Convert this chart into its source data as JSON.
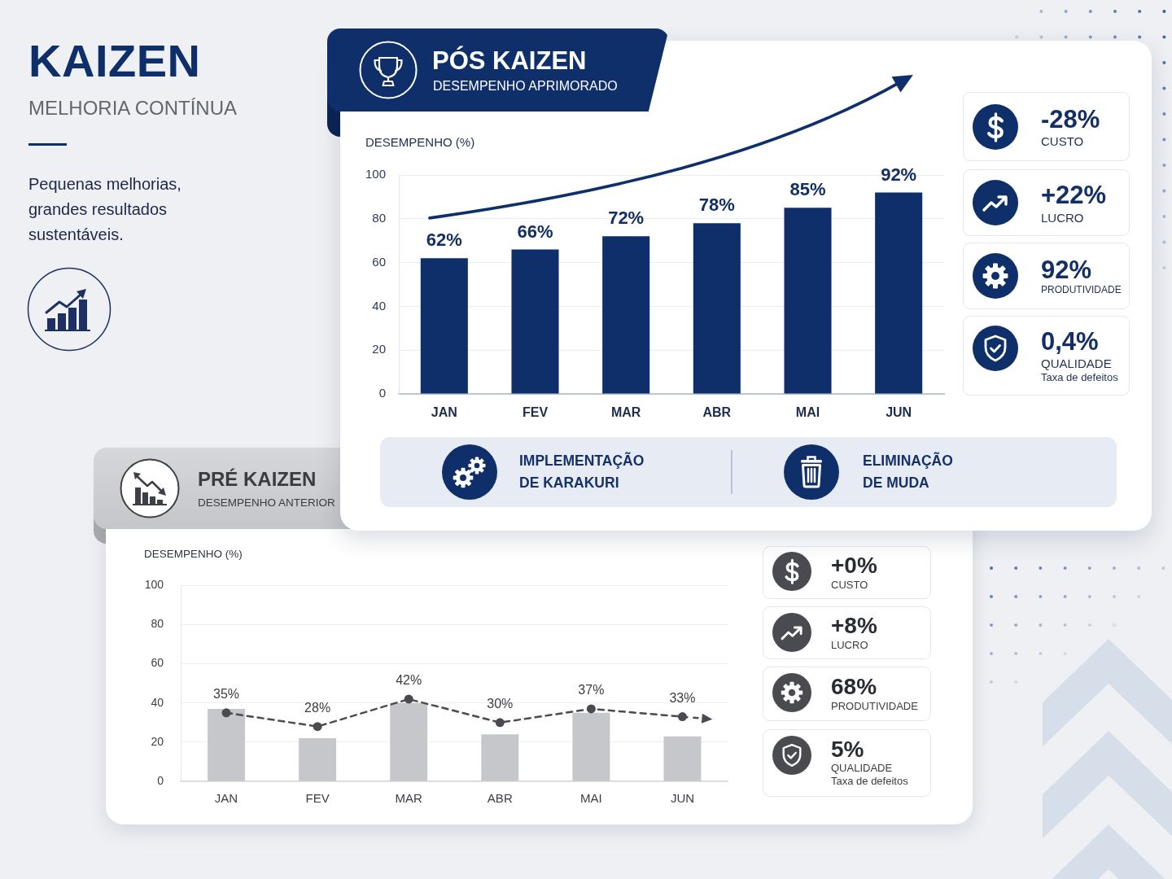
{
  "chart_data": [
    {
      "type": "other",
      "title": "KAIZEN",
      "subtitle": "MELHORIA CONTÍNUA",
      "annotations": [
        "Pequenas melhorias, grandes resultados sustentáveis."
      ]
    },
    {
      "type": "bar",
      "title": "PÓS KAIZEN",
      "subtitle": "DESEMPENHO APRIMORADO",
      "ylabel": "DESEMPENHO (%)",
      "categories": [
        "JAN",
        "FEV",
        "MAR",
        "ABR",
        "MAI",
        "JUN"
      ],
      "values": [
        62,
        66,
        72,
        78,
        85,
        92
      ],
      "value_labels": [
        "62%",
        "66%",
        "72%",
        "78%",
        "85%",
        "92%"
      ],
      "color": "#0f2f6b",
      "ylim": [
        0,
        100
      ],
      "yticks": [
        0,
        20,
        40,
        60,
        80,
        100
      ],
      "grid": "y"
    },
    {
      "type": "other",
      "title": "-28%",
      "subtitle": "CUSTO"
    },
    {
      "type": "other",
      "title": "+22%",
      "subtitle": "LUCRO"
    },
    {
      "type": "other",
      "title": "92%",
      "subtitle": "PRODUTIVIDADE"
    },
    {
      "type": "other",
      "title": "0,4%",
      "subtitle": "QUALIDADE",
      "annotations": [
        "Taxa de defeitos"
      ]
    },
    {
      "type": "other",
      "annotations": [
        "IMPLEMENTAÇÃO DE KARAKURI",
        "ELIMINAÇÃO DE MUDA"
      ]
    },
    {
      "type": "bar",
      "title": "PRÉ KAIZEN",
      "subtitle": "DESEMPENHO ANTERIOR",
      "ylabel": "DESEMPENHO (%)",
      "categories": [
        "JAN",
        "FEV",
        "MAR",
        "ABR",
        "MAI",
        "JUN"
      ],
      "series": [
        {
          "type": "bar",
          "color": "#c6c7cb",
          "values": [
            37,
            22,
            40,
            24,
            35,
            23
          ]
        },
        {
          "type": "line",
          "color": "#4a4b51",
          "values": [
            35,
            28,
            42,
            30,
            37,
            33
          ],
          "value_labels": [
            "35%",
            "28%",
            "42%",
            "30%",
            "37%",
            "33%"
          ]
        }
      ],
      "ylim": [
        0,
        100
      ],
      "yticks": [
        0,
        20,
        40,
        60,
        80,
        100
      ],
      "grid": "y",
      "marker": "circle",
      "line_style": "dashed"
    },
    {
      "type": "other",
      "title": "+0%",
      "subtitle": "CUSTO"
    },
    {
      "type": "other",
      "title": "+8%",
      "subtitle": "LUCRO"
    },
    {
      "type": "other",
      "title": "68%",
      "subtitle": "PRODUTIVIDADE"
    },
    {
      "type": "other",
      "title": "5%",
      "subtitle": "QUALIDADE",
      "annotations": [
        "Taxa de defeitos"
      ]
    }
  ]
}
